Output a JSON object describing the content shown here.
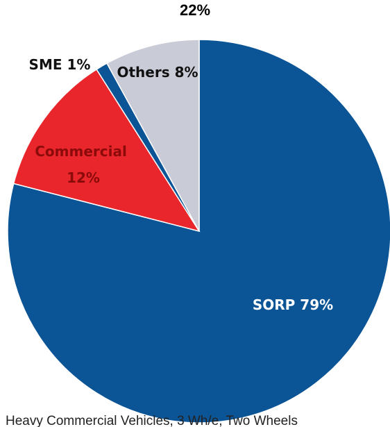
{
  "header": {
    "top_label": "22%"
  },
  "footer": {
    "caption": "Heavy Commercial Vehicles, 3 Wh/e, Two Wheels"
  },
  "chart_data": {
    "type": "pie",
    "title": "",
    "slices": [
      {
        "label": "SORP",
        "value": 79,
        "display": "SORP 79%",
        "color": "#0B5597",
        "label_color": "#ffffff"
      },
      {
        "label": "Commercial",
        "value": 12,
        "display_lines": [
          "Commercial",
          "12%"
        ],
        "color": "#E8262B",
        "label_color": "#8B0B0B"
      },
      {
        "label": "SME",
        "value": 1,
        "display": "SME 1%",
        "color": "#0B5597",
        "label_color": "#111111"
      },
      {
        "label": "Others",
        "value": 8,
        "display": "Others 8%",
        "color": "#C9CBD6",
        "label_color": "#111111"
      }
    ]
  }
}
